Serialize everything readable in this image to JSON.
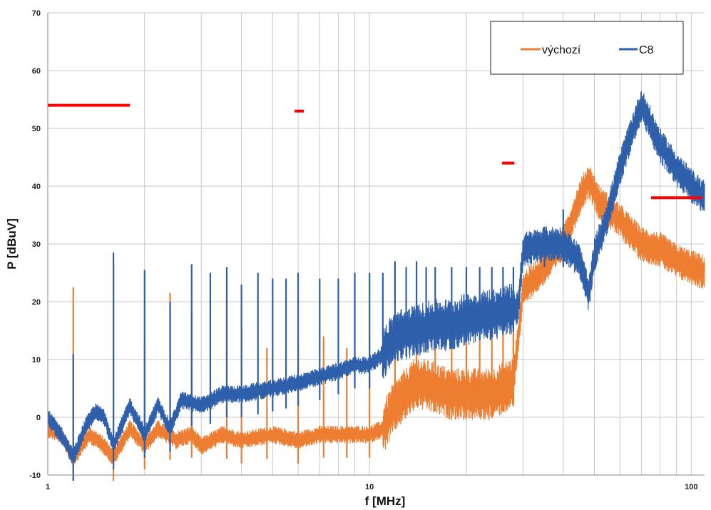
{
  "chart_data": {
    "type": "line",
    "xlabel": "f [MHz]",
    "ylabel": "P [dBuV]",
    "x_scale": "log",
    "xlim": [
      1,
      110
    ],
    "ylim": [
      -10,
      70
    ],
    "x_ticks": [
      "1",
      "10",
      "100"
    ],
    "y_ticks": [
      "-10",
      "0",
      "10",
      "20",
      "30",
      "40",
      "50",
      "60",
      "70"
    ],
    "grid": true,
    "legend_position": "top-right",
    "series": [
      {
        "name": "výchozí",
        "color": "#ED7D31",
        "points": [
          [
            1.0,
            -2
          ],
          [
            1.1,
            -3
          ],
          [
            1.2,
            -7
          ],
          [
            1.35,
            -3
          ],
          [
            1.5,
            -5
          ],
          [
            1.6,
            -7
          ],
          [
            1.8,
            -2
          ],
          [
            2.0,
            -5
          ],
          [
            2.2,
            -2
          ],
          [
            2.5,
            -4
          ],
          [
            2.8,
            -3
          ],
          [
            3.0,
            -5
          ],
          [
            3.5,
            -3
          ],
          [
            4.0,
            -4
          ],
          [
            5.0,
            -3
          ],
          [
            6.0,
            -4
          ],
          [
            7.0,
            -3
          ],
          [
            8.0,
            -3
          ],
          [
            10.0,
            -3
          ],
          [
            11.0,
            -2
          ],
          [
            12.0,
            2
          ],
          [
            14.0,
            6
          ],
          [
            16.0,
            5
          ],
          [
            18.0,
            4
          ],
          [
            20.0,
            4
          ],
          [
            24.0,
            4
          ],
          [
            28.0,
            6
          ],
          [
            30.0,
            22
          ],
          [
            35.0,
            26
          ],
          [
            40.0,
            30
          ],
          [
            45.0,
            38
          ],
          [
            48.0,
            41
          ],
          [
            52.0,
            37
          ],
          [
            60.0,
            34
          ],
          [
            70.0,
            30
          ],
          [
            80.0,
            29
          ],
          [
            90.0,
            27
          ],
          [
            100.0,
            26
          ],
          [
            110.0,
            25
          ]
        ],
        "peaks": [
          [
            1.2,
            22.5
          ],
          [
            1.6,
            26.5
          ],
          [
            2.0,
            13
          ],
          [
            2.4,
            21.5
          ],
          [
            2.8,
            18
          ],
          [
            3.6,
            20
          ],
          [
            4.0,
            16
          ],
          [
            4.8,
            12
          ],
          [
            6.0,
            13
          ],
          [
            7.2,
            14
          ],
          [
            8.5,
            12
          ],
          [
            10.0,
            14
          ],
          [
            12.0,
            15
          ],
          [
            14.0,
            16
          ],
          [
            16.0,
            17
          ],
          [
            18.0,
            16
          ],
          [
            20.0,
            17
          ],
          [
            22.0,
            17
          ],
          [
            24.0,
            18
          ],
          [
            26.0,
            18
          ],
          [
            28.0,
            18
          ]
        ]
      },
      {
        "name": "C8",
        "color": "#2E5FAA",
        "points": [
          [
            1.0,
            0
          ],
          [
            1.1,
            -3
          ],
          [
            1.2,
            -7
          ],
          [
            1.3,
            -2
          ],
          [
            1.4,
            1
          ],
          [
            1.5,
            0
          ],
          [
            1.6,
            -5
          ],
          [
            1.8,
            2
          ],
          [
            2.0,
            -3
          ],
          [
            2.2,
            2
          ],
          [
            2.4,
            -2
          ],
          [
            2.6,
            3
          ],
          [
            3.0,
            2
          ],
          [
            3.5,
            4
          ],
          [
            4.0,
            4
          ],
          [
            5.0,
            5
          ],
          [
            6.0,
            6
          ],
          [
            7.0,
            7
          ],
          [
            8.0,
            8
          ],
          [
            9.0,
            9
          ],
          [
            10.0,
            9
          ],
          [
            11.0,
            11
          ],
          [
            12.0,
            14
          ],
          [
            14.0,
            15
          ],
          [
            16.0,
            16
          ],
          [
            18.0,
            16
          ],
          [
            20.0,
            17
          ],
          [
            25.0,
            18
          ],
          [
            29.0,
            19
          ],
          [
            30.0,
            29
          ],
          [
            35.0,
            30
          ],
          [
            40.0,
            30
          ],
          [
            45.0,
            27
          ],
          [
            48.0,
            21
          ],
          [
            50.0,
            28
          ],
          [
            55.0,
            35
          ],
          [
            60.0,
            43
          ],
          [
            65.0,
            49
          ],
          [
            70.0,
            54
          ],
          [
            73.0,
            52
          ],
          [
            80.0,
            47
          ],
          [
            90.0,
            43
          ],
          [
            100.0,
            40
          ],
          [
            110.0,
            38
          ]
        ],
        "peaks": [
          [
            1.2,
            11
          ],
          [
            1.6,
            28.5
          ],
          [
            2.0,
            25.5
          ],
          [
            2.4,
            20
          ],
          [
            2.8,
            26.5
          ],
          [
            3.2,
            25
          ],
          [
            3.6,
            26
          ],
          [
            4.0,
            23
          ],
          [
            4.5,
            25
          ],
          [
            5.0,
            24
          ],
          [
            5.5,
            24
          ],
          [
            6.0,
            25
          ],
          [
            7.0,
            24
          ],
          [
            8.0,
            24
          ],
          [
            9.0,
            25
          ],
          [
            10.0,
            25
          ],
          [
            11.0,
            25
          ],
          [
            12.0,
            27
          ],
          [
            13.0,
            26
          ],
          [
            14.0,
            27
          ],
          [
            15.0,
            26
          ],
          [
            16.0,
            26
          ],
          [
            18.0,
            26
          ],
          [
            20.0,
            26
          ],
          [
            22.0,
            26
          ],
          [
            24.0,
            26
          ],
          [
            26.0,
            26
          ],
          [
            28.0,
            26
          ],
          [
            35.0,
            33
          ],
          [
            40.0,
            36
          ]
        ]
      }
    ],
    "limit_lines": [
      {
        "color": "#FF0000",
        "x": [
          1.0,
          1.8
        ],
        "y": 54
      },
      {
        "color": "#FF0000",
        "x": [
          5.85,
          6.25
        ],
        "y": 53
      },
      {
        "color": "#FF0000",
        "x": [
          25.8,
          28.2
        ],
        "y": 44
      },
      {
        "color": "#FF0000",
        "x": [
          75.0,
          108.0
        ],
        "y": 38
      }
    ]
  }
}
